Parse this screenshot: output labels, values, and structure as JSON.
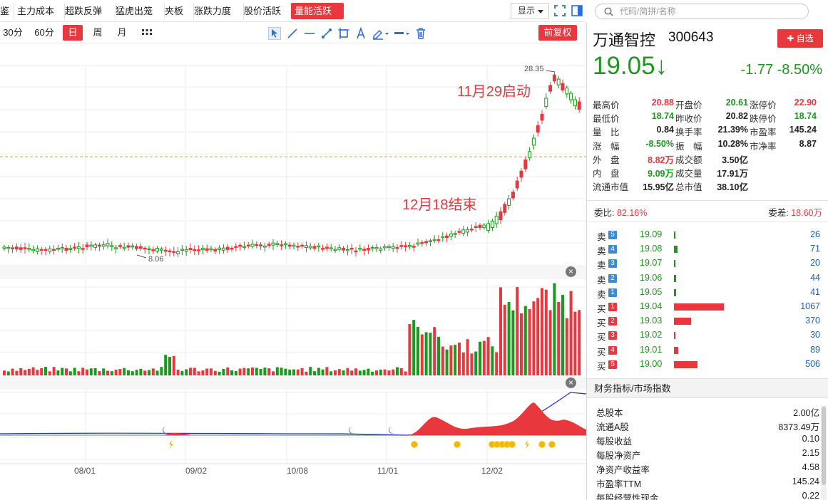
{
  "toolbar": {
    "tabs": [
      "鉴",
      "主力成本",
      "超跌反弹",
      "猛虎出笼",
      "夹板",
      "涨跌力度",
      "股价活跃",
      "量能活跃"
    ],
    "active_tab": "量能活跃",
    "show_label": "显示"
  },
  "search": {
    "placeholder": "代码/简拼/名称"
  },
  "periods": [
    "30分",
    "60分",
    "日",
    "周",
    "月"
  ],
  "active_period": "日",
  "restore_label": "前复权",
  "chart": {
    "annotations": [
      "12月18结束",
      "11月29启动"
    ],
    "high_label": "28.35",
    "low_label": "8.06",
    "x_labels": [
      "08/01",
      "09/02",
      "10/08",
      "11/01",
      "12/02"
    ]
  },
  "chart_data": {
    "type": "candlestick",
    "title": "",
    "high_marker": 28.35,
    "low_marker": 8.06,
    "x_tick_labels": [
      "08/01",
      "09/02",
      "10/08",
      "11/01",
      "12/02"
    ],
    "annotations": [
      {
        "text": "11月29启动"
      },
      {
        "text": "12月18结束"
      }
    ]
  },
  "stock": {
    "name": "万通智控",
    "code": "300643",
    "add_label": "✚ 自选",
    "price": "19.05↓",
    "change": "-1.77  -8.50%"
  },
  "quote": {
    "rows": [
      [
        [
          "最高价",
          "20.88",
          "red"
        ],
        [
          "开盘价",
          "20.61",
          "green"
        ],
        [
          "涨停价",
          "22.90",
          "red"
        ]
      ],
      [
        [
          "最低价",
          "18.74",
          "green"
        ],
        [
          "昨收价",
          "20.82",
          "black"
        ],
        [
          "跌停价",
          "18.74",
          "green"
        ]
      ],
      [
        [
          "量　比",
          "0.84",
          "black"
        ],
        [
          "换手率",
          "21.39%",
          "black"
        ],
        [
          "市盈率",
          "145.24",
          "black"
        ]
      ],
      [
        [
          "涨　幅",
          "-8.50%",
          "green"
        ],
        [
          "振　幅",
          "10.28%",
          "black"
        ],
        [
          "市净率",
          "8.87",
          "black"
        ]
      ],
      [
        [
          "外　盘",
          "8.82万",
          "red"
        ],
        [
          "成交额",
          "3.50亿",
          "black"
        ]
      ],
      [
        [
          "内　盘",
          "9.09万",
          "green"
        ],
        [
          "成交量",
          "17.91万",
          "black"
        ]
      ],
      [
        [
          "流通市值",
          "15.95亿",
          "black"
        ],
        [
          "总市值",
          "38.10亿",
          "black"
        ]
      ]
    ]
  },
  "weibi": {
    "label": "委比:",
    "value": "82.16%"
  },
  "weicha": {
    "label": "委差:",
    "value": "18.60万"
  },
  "orderbook": [
    {
      "side": "卖",
      "level": "5",
      "price": "19.09",
      "volume": "26"
    },
    {
      "side": "卖",
      "level": "4",
      "price": "19.08",
      "volume": "71"
    },
    {
      "side": "卖",
      "level": "3",
      "price": "19.07",
      "volume": "20"
    },
    {
      "side": "卖",
      "level": "2",
      "price": "19.06",
      "volume": "44"
    },
    {
      "side": "卖",
      "level": "1",
      "price": "19.05",
      "volume": "41"
    },
    {
      "side": "买",
      "level": "1",
      "price": "19.04",
      "volume": "1067"
    },
    {
      "side": "买",
      "level": "2",
      "price": "19.03",
      "volume": "370"
    },
    {
      "side": "买",
      "level": "3",
      "price": "19.02",
      "volume": "30"
    },
    {
      "side": "买",
      "level": "4",
      "price": "19.01",
      "volume": "89"
    },
    {
      "side": "买",
      "level": "5",
      "price": "19.00",
      "volume": "506"
    }
  ],
  "finance": {
    "title": "财务指标/市场指数",
    "rows": [
      [
        "总股本",
        "2.00亿"
      ],
      [
        "流通A股",
        "8373.49万"
      ],
      [
        "每股收益",
        "0.10"
      ],
      [
        "每股净资产",
        "2.15"
      ],
      [
        "净资产收益率",
        "4.58"
      ],
      [
        "市盈率TTM",
        "145.24"
      ],
      [
        "每股经营性现金",
        "0.22"
      ]
    ]
  },
  "colors": {
    "up": "#e8383d",
    "down": "#1a9a1a",
    "link": "#2060c0"
  }
}
